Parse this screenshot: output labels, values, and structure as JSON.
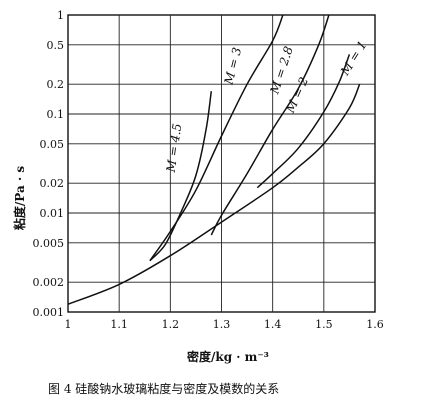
{
  "chart_data": {
    "type": "line",
    "ylabel": "粘度/Pa · s",
    "xlabel": "密度/kg · m⁻³",
    "caption": "图 4  硅酸钠水玻璃粘度与密度及模数的关系",
    "x_ticks": [
      "1",
      "1.1",
      "1.2",
      "1.3",
      "1.4",
      "1.5",
      "1.6"
    ],
    "y_ticks": [
      "1",
      "0.5",
      "0.2",
      "0.1",
      "0.05",
      "0.02",
      "0.01",
      "0.005",
      "0.002",
      "0.001"
    ],
    "xlim": [
      1.0,
      1.6
    ],
    "ylim": [
      0.001,
      1
    ],
    "y_scale": "log",
    "grid": true,
    "series": [
      {
        "name": "M = 1",
        "points": [
          [
            1.0,
            0.0012
          ],
          [
            1.1,
            0.0019
          ],
          [
            1.2,
            0.0037
          ],
          [
            1.3,
            0.0081
          ],
          [
            1.4,
            0.018
          ],
          [
            1.45,
            0.029
          ],
          [
            1.5,
            0.05
          ],
          [
            1.55,
            0.115
          ],
          [
            1.57,
            0.2
          ]
        ]
      },
      {
        "name": "M = 2",
        "points": [
          [
            1.37,
            0.018
          ],
          [
            1.4,
            0.025
          ],
          [
            1.45,
            0.045
          ],
          [
            1.5,
            0.105
          ],
          [
            1.53,
            0.21
          ],
          [
            1.55,
            0.4
          ]
        ]
      },
      {
        "name": "M = 2.8",
        "points": [
          [
            1.28,
            0.006
          ],
          [
            1.3,
            0.0095
          ],
          [
            1.35,
            0.025
          ],
          [
            1.4,
            0.07
          ],
          [
            1.45,
            0.18
          ],
          [
            1.49,
            0.5
          ],
          [
            1.51,
            1.0
          ]
        ]
      },
      {
        "name": "M = 3",
        "points": [
          [
            1.16,
            0.0033
          ],
          [
            1.2,
            0.0065
          ],
          [
            1.25,
            0.017
          ],
          [
            1.3,
            0.06
          ],
          [
            1.35,
            0.2
          ],
          [
            1.4,
            0.55
          ],
          [
            1.42,
            1.0
          ]
        ]
      },
      {
        "name": "M = 4.5",
        "points": [
          [
            1.16,
            0.0033
          ],
          [
            1.19,
            0.0048
          ],
          [
            1.22,
            0.01
          ],
          [
            1.25,
            0.024
          ],
          [
            1.27,
            0.07
          ],
          [
            1.28,
            0.17
          ]
        ]
      }
    ],
    "curve_labels": [
      "M = 1",
      "M = 2",
      "M = 2.8",
      "M = 3",
      "M = 4.5"
    ],
    "line_color": "#111111"
  }
}
